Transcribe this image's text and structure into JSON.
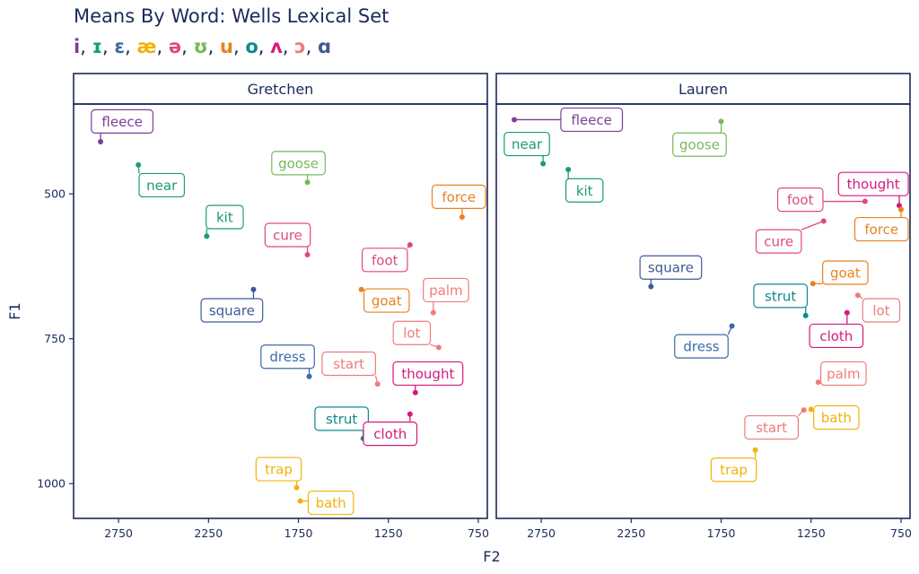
{
  "title": "Means By Word: Wells Lexical Set",
  "vowel_legend": [
    {
      "symbol": "i",
      "color": "#7b3f98"
    },
    {
      "symbol": "ɪ",
      "color": "#1a9e6e"
    },
    {
      "symbol": "ɛ",
      "color": "#3d6aa8"
    },
    {
      "symbol": "æ",
      "color": "#f2b20a"
    },
    {
      "symbol": "ə",
      "color": "#e04a7a"
    },
    {
      "symbol": "ʊ",
      "color": "#78b85a"
    },
    {
      "symbol": "u",
      "color": "#e8821e"
    },
    {
      "symbol": "o",
      "color": "#0e8a8c"
    },
    {
      "symbol": "ʌ",
      "color": "#d6197e"
    },
    {
      "symbol": "ɔ",
      "color": "#f07b7b"
    },
    {
      "symbol": "ɑ",
      "color": "#3d5a96"
    }
  ],
  "chart_data": {
    "type": "scatter",
    "title": "Means By Word: Wells Lexical Set",
    "xlabel": "F2",
    "ylabel": "F1",
    "x_reversed": true,
    "y_reversed": true,
    "xlim": [
      3000,
      700
    ],
    "ylim": [
      345,
      1060
    ],
    "x_ticks": [
      2750,
      2250,
      1750,
      1250,
      750
    ],
    "y_ticks": [
      500,
      750,
      1000
    ],
    "panels": [
      {
        "name": "Gretchen",
        "points": [
          {
            "word": "fleece",
            "vowel": "i",
            "F2": 2850,
            "F1": 410,
            "lx": 2730,
            "ly": 375
          },
          {
            "word": "near",
            "vowel": "ɪ",
            "F2": 2640,
            "F1": 450,
            "lx": 2510,
            "ly": 485
          },
          {
            "word": "goose",
            "vowel": "ʊ",
            "F2": 1700,
            "F1": 480,
            "lx": 1750,
            "ly": 447
          },
          {
            "word": "kit",
            "vowel": "ɪ",
            "F2": 2260,
            "F1": 573,
            "lx": 2160,
            "ly": 540
          },
          {
            "word": "force",
            "vowel": "u",
            "F2": 840,
            "F1": 540,
            "lx": 845,
            "ly": 505
          },
          {
            "word": "cure",
            "vowel": "ə",
            "F2": 1700,
            "F1": 605,
            "lx": 1810,
            "ly": 571
          },
          {
            "word": "foot",
            "vowel": "ə",
            "F2": 1130,
            "F1": 588,
            "lx": 1270,
            "ly": 614
          },
          {
            "word": "square",
            "vowel": "ɑ",
            "F2": 2000,
            "F1": 665,
            "lx": 2120,
            "ly": 701
          },
          {
            "word": "goat",
            "vowel": "u",
            "F2": 1400,
            "F1": 665,
            "lx": 1260,
            "ly": 684
          },
          {
            "word": "palm",
            "vowel": "ɔ",
            "F2": 1000,
            "F1": 705,
            "lx": 930,
            "ly": 666
          },
          {
            "word": "lot",
            "vowel": "ɔ",
            "F2": 970,
            "F1": 765,
            "lx": 1120,
            "ly": 740
          },
          {
            "word": "dress",
            "vowel": "ɛ",
            "F2": 1690,
            "F1": 815,
            "lx": 1810,
            "ly": 781
          },
          {
            "word": "start",
            "vowel": "ɔ",
            "F2": 1310,
            "F1": 828,
            "lx": 1470,
            "ly": 793
          },
          {
            "word": "thought",
            "vowel": "ʌ",
            "F2": 1100,
            "F1": 843,
            "lx": 1030,
            "ly": 810
          },
          {
            "word": "strut",
            "vowel": "o",
            "F2": 1390,
            "F1": 922,
            "lx": 1510,
            "ly": 888
          },
          {
            "word": "cloth",
            "vowel": "ʌ",
            "F2": 1130,
            "F1": 880,
            "lx": 1240,
            "ly": 914
          },
          {
            "word": "trap",
            "vowel": "æ",
            "F2": 1760,
            "F1": 1007,
            "lx": 1860,
            "ly": 975
          },
          {
            "word": "bath",
            "vowel": "æ",
            "F2": 1740,
            "F1": 1030,
            "lx": 1570,
            "ly": 1033
          }
        ]
      },
      {
        "name": "Lauren",
        "points": [
          {
            "word": "fleece",
            "vowel": "i",
            "F2": 2900,
            "F1": 372,
            "lx": 2470,
            "ly": 372
          },
          {
            "word": "goose",
            "vowel": "ʊ",
            "F2": 1750,
            "F1": 375,
            "lx": 1870,
            "ly": 415
          },
          {
            "word": "near",
            "vowel": "ɪ",
            "F2": 2740,
            "F1": 448,
            "lx": 2830,
            "ly": 414
          },
          {
            "word": "kit",
            "vowel": "ɪ",
            "F2": 2600,
            "F1": 458,
            "lx": 2510,
            "ly": 494
          },
          {
            "word": "thought",
            "vowel": "ʌ",
            "F2": 760,
            "F1": 520,
            "lx": 800,
            "ly": 483
          },
          {
            "word": "force",
            "vowel": "u",
            "F2": 750,
            "F1": 527,
            "lx": 810,
            "ly": 561
          },
          {
            "word": "foot",
            "vowel": "ə",
            "F2": 950,
            "F1": 513,
            "lx": 1310,
            "ly": 510
          },
          {
            "word": "cure",
            "vowel": "ə",
            "F2": 1180,
            "F1": 547,
            "lx": 1430,
            "ly": 582
          },
          {
            "word": "square",
            "vowel": "ɑ",
            "F2": 2140,
            "F1": 660,
            "lx": 2030,
            "ly": 627
          },
          {
            "word": "goat",
            "vowel": "u",
            "F2": 1240,
            "F1": 655,
            "lx": 1060,
            "ly": 636
          },
          {
            "word": "strut",
            "vowel": "o",
            "F2": 1280,
            "F1": 710,
            "lx": 1420,
            "ly": 676
          },
          {
            "word": "lot",
            "vowel": "ɔ",
            "F2": 990,
            "F1": 675,
            "lx": 860,
            "ly": 701
          },
          {
            "word": "cloth",
            "vowel": "ʌ",
            "F2": 1050,
            "F1": 705,
            "lx": 1110,
            "ly": 745
          },
          {
            "word": "dress",
            "vowel": "ɛ",
            "F2": 1690,
            "F1": 728,
            "lx": 1860,
            "ly": 763
          },
          {
            "word": "palm",
            "vowel": "ɔ",
            "F2": 1210,
            "F1": 825,
            "lx": 1070,
            "ly": 810
          },
          {
            "word": "start",
            "vowel": "ɔ",
            "F2": 1290,
            "F1": 873,
            "lx": 1470,
            "ly": 903
          },
          {
            "word": "bath",
            "vowel": "æ",
            "F2": 1250,
            "F1": 872,
            "lx": 1110,
            "ly": 886
          },
          {
            "word": "trap",
            "vowel": "æ",
            "F2": 1560,
            "F1": 942,
            "lx": 1680,
            "ly": 976
          }
        ]
      }
    ]
  }
}
